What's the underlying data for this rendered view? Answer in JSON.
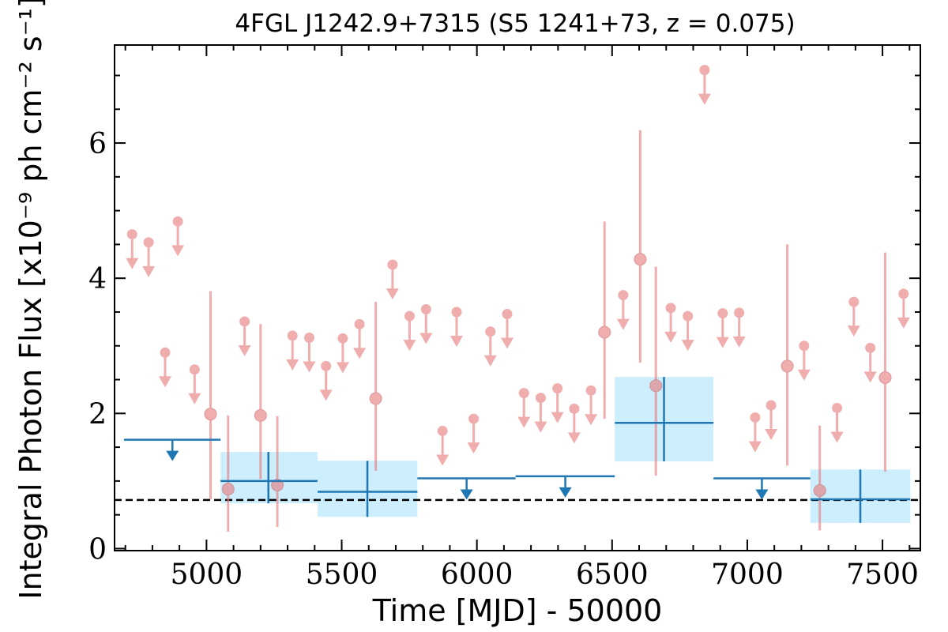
{
  "chart_data": {
    "type": "scatter",
    "title": "4FGL J1242.9+7315 (S5 1241+73, z = 0.075)",
    "xlabel": "Time [MJD] - 50000",
    "ylabel": "Integral Photon Flux [x10⁻⁹ ph cm⁻² s⁻¹]",
    "xlim": [
      4660,
      7640
    ],
    "ylim": [
      -0.03,
      7.45
    ],
    "x_ticks": [
      5000,
      5500,
      6000,
      6500,
      7000,
      7500
    ],
    "x_tick_labels": [
      "5000",
      "5500",
      "6000",
      "6500",
      "7000",
      "7500"
    ],
    "y_ticks": [
      0,
      2,
      4,
      6
    ],
    "y_tick_labels": [
      "0",
      "2",
      "4",
      "6"
    ],
    "reference_flux": 0.72,
    "colors": {
      "fine": "#e87b7e",
      "coarse": "#1f77b4",
      "coarse_band": "#cdeefc",
      "reference_line": "#000000"
    },
    "fine_upper_limits": [
      {
        "x": 4725,
        "y": 4.65
      },
      {
        "x": 4786,
        "y": 4.53
      },
      {
        "x": 4847,
        "y": 2.9
      },
      {
        "x": 4894,
        "y": 4.84
      },
      {
        "x": 4956,
        "y": 2.65
      },
      {
        "x": 5141,
        "y": 3.36
      },
      {
        "x": 5318,
        "y": 3.15
      },
      {
        "x": 5380,
        "y": 3.12
      },
      {
        "x": 5442,
        "y": 2.7
      },
      {
        "x": 5504,
        "y": 3.11
      },
      {
        "x": 5566,
        "y": 3.32
      },
      {
        "x": 5688,
        "y": 4.2
      },
      {
        "x": 5751,
        "y": 3.44
      },
      {
        "x": 5812,
        "y": 3.54
      },
      {
        "x": 5873,
        "y": 1.74
      },
      {
        "x": 5925,
        "y": 3.5
      },
      {
        "x": 5988,
        "y": 1.92
      },
      {
        "x": 6050,
        "y": 3.21
      },
      {
        "x": 6112,
        "y": 3.47
      },
      {
        "x": 6174,
        "y": 2.3
      },
      {
        "x": 6236,
        "y": 2.23
      },
      {
        "x": 6298,
        "y": 2.37
      },
      {
        "x": 6360,
        "y": 2.07
      },
      {
        "x": 6422,
        "y": 2.34
      },
      {
        "x": 6541,
        "y": 3.75
      },
      {
        "x": 6717,
        "y": 3.56
      },
      {
        "x": 6780,
        "y": 3.44
      },
      {
        "x": 6842,
        "y": 7.08
      },
      {
        "x": 6909,
        "y": 3.48
      },
      {
        "x": 6970,
        "y": 3.49
      },
      {
        "x": 7029,
        "y": 1.94
      },
      {
        "x": 7088,
        "y": 2.12
      },
      {
        "x": 7210,
        "y": 3.0
      },
      {
        "x": 7332,
        "y": 2.08
      },
      {
        "x": 7394,
        "y": 3.65
      },
      {
        "x": 7455,
        "y": 2.97
      },
      {
        "x": 7578,
        "y": 3.77
      }
    ],
    "fine_detections": [
      {
        "x": 5015,
        "y": 1.99,
        "ylow": 0.73,
        "yhigh": 3.81
      },
      {
        "x": 5080,
        "y": 0.88,
        "ylow": 0.25,
        "yhigh": 1.97
      },
      {
        "x": 5200,
        "y": 1.97,
        "ylow": 1.03,
        "yhigh": 3.32
      },
      {
        "x": 5262,
        "y": 0.94,
        "ylow": 0.32,
        "yhigh": 1.96
      },
      {
        "x": 5626,
        "y": 2.22,
        "ylow": 1.15,
        "yhigh": 3.65
      },
      {
        "x": 6472,
        "y": 3.2,
        "ylow": 1.92,
        "yhigh": 4.84
      },
      {
        "x": 6604,
        "y": 4.28,
        "ylow": 2.75,
        "yhigh": 6.19
      },
      {
        "x": 6662,
        "y": 2.41,
        "ylow": 1.08,
        "yhigh": 4.17
      },
      {
        "x": 7148,
        "y": 2.7,
        "ylow": 1.23,
        "yhigh": 4.5
      },
      {
        "x": 7268,
        "y": 0.86,
        "ylow": 0.27,
        "yhigh": 1.82
      },
      {
        "x": 7510,
        "y": 2.53,
        "ylow": 1.14,
        "yhigh": 4.38
      }
    ],
    "coarse_upper_limits": [
      {
        "x": 4874,
        "xlow": 4695,
        "xhigh": 5052,
        "y": 1.61
      },
      {
        "x": 5962,
        "xlow": 5780,
        "xhigh": 6143,
        "y": 1.04
      },
      {
        "x": 6327,
        "xlow": 6143,
        "xhigh": 6510,
        "y": 1.07
      },
      {
        "x": 7054,
        "xlow": 6875,
        "xhigh": 7233,
        "y": 1.04
      }
    ],
    "coarse_detections": [
      {
        "x": 5229,
        "xlow": 5052,
        "xhigh": 5411,
        "y": 1.0,
        "ylow": 0.67,
        "yhigh": 1.43
      },
      {
        "x": 5595,
        "xlow": 5411,
        "xhigh": 5780,
        "y": 0.84,
        "ylow": 0.47,
        "yhigh": 1.3
      },
      {
        "x": 6692,
        "xlow": 6510,
        "xhigh": 6875,
        "y": 1.86,
        "ylow": 1.29,
        "yhigh": 2.54
      },
      {
        "x": 7418,
        "xlow": 7233,
        "xhigh": 7603,
        "y": 0.73,
        "ylow": 0.38,
        "yhigh": 1.17
      }
    ]
  }
}
